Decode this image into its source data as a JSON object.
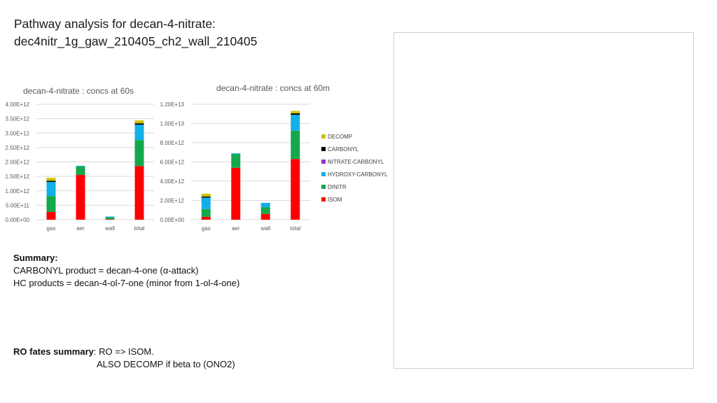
{
  "title": {
    "line1": "Pathway analysis for decan-4-nitrate:",
    "line2": "dec4nitr_1g_gaw_210405_ch2_wall_210405"
  },
  "legend": [
    {
      "name": "DECOMP",
      "color": "#c9c400"
    },
    {
      "name": "CARBONYL",
      "color": "#000000"
    },
    {
      "name": "NITRATE-CARBONYL",
      "color": "#9b30c9"
    },
    {
      "name": "HYDROXY-CARBONYL",
      "color": "#12b0e8"
    },
    {
      "name": "DINITR",
      "color": "#14a84b"
    },
    {
      "name": "ISOM",
      "color": "#ff0000"
    }
  ],
  "chart_data": [
    {
      "type": "bar",
      "stacked": true,
      "title": "decan-4-nitrate : concs at 60s",
      "categories": [
        "gas",
        "aer",
        "wall",
        "total"
      ],
      "ylim": [
        0,
        4000000000000.0
      ],
      "yticks": [
        "0.00E+00",
        "5.00E+11",
        "1.00E+12",
        "1.50E+12",
        "2.00E+12",
        "2.50E+12",
        "3.00E+12",
        "3.50E+12",
        "4.00E+12"
      ],
      "grid": true,
      "series": [
        {
          "name": "ISOM",
          "color": "#ff0000",
          "values": [
            270000000000.0,
            1550000000000.0,
            20000000000.0,
            1860000000000.0
          ]
        },
        {
          "name": "DINITR",
          "color": "#14a84b",
          "values": [
            550000000000.0,
            300000000000.0,
            60000000000.0,
            900000000000.0
          ]
        },
        {
          "name": "HYDROXY-CARBONYL",
          "color": "#12b0e8",
          "values": [
            490000000000.0,
            20000000000.0,
            30000000000.0,
            530000000000.0
          ]
        },
        {
          "name": "NITRATE-CARBONYL",
          "color": "#9b30c9",
          "values": [
            0,
            0,
            0,
            0
          ]
        },
        {
          "name": "CARBONYL",
          "color": "#000000",
          "values": [
            40000000000.0,
            0,
            0,
            50000000000.0
          ]
        },
        {
          "name": "DECOMP",
          "color": "#c9c400",
          "values": [
            100000000000.0,
            0,
            0,
            100000000000.0
          ]
        }
      ]
    },
    {
      "type": "bar",
      "stacked": true,
      "title": "decan-4-nitrate : concs at 60m",
      "categories": [
        "gas",
        "aer",
        "wall",
        "total"
      ],
      "ylim": [
        0,
        12000000000000.0
      ],
      "yticks": [
        "0.00E+00",
        "2.00E+12",
        "4.00E+12",
        "6.00E+12",
        "8.00E+12",
        "1.00E+13",
        "1.20E+13"
      ],
      "grid": true,
      "series": [
        {
          "name": "ISOM",
          "color": "#ff0000",
          "values": [
            300000000000.0,
            5400000000000.0,
            600000000000.0,
            6300000000000.0
          ]
        },
        {
          "name": "DINITR",
          "color": "#14a84b",
          "values": [
            800000000000.0,
            1400000000000.0,
            700000000000.0,
            2950000000000.0
          ]
        },
        {
          "name": "HYDROXY-CARBONYL",
          "color": "#12b0e8",
          "values": [
            1200000000000.0,
            100000000000.0,
            450000000000.0,
            1650000000000.0
          ]
        },
        {
          "name": "NITRATE-CARBONYL",
          "color": "#9b30c9",
          "values": [
            0,
            0,
            0,
            0
          ]
        },
        {
          "name": "CARBONYL",
          "color": "#000000",
          "values": [
            100000000000.0,
            0,
            0,
            150000000000.0
          ]
        },
        {
          "name": "DECOMP",
          "color": "#c9c400",
          "values": [
            300000000000.0,
            0,
            0,
            250000000000.0
          ]
        }
      ]
    }
  ],
  "summary": {
    "heading": "Summary:",
    "line1": "CARBONYL product = decan-4-one (α-attack)",
    "line2": "HC products = decan-4-ol-7-one (minor from 1-ol-4-one)"
  },
  "ro_fates": {
    "label": "RO fates summary",
    "line1": ": RO => ISOM.",
    "line2": "ALSO DECOMP if beta to (ONO2)"
  }
}
